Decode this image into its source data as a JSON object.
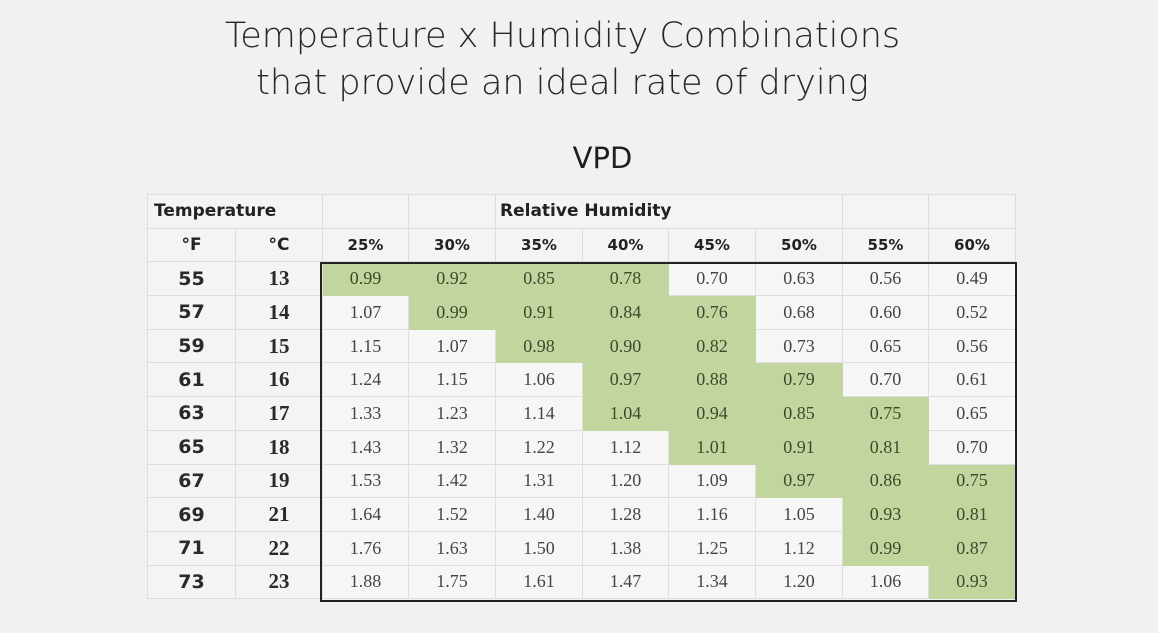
{
  "title_line1": "Temperature x Humidity Combinations",
  "title_line2": "that provide an ideal rate of drying",
  "chart_data": {
    "type": "table",
    "title": "VPD",
    "row_header": "Temperature",
    "column_group_header": "Relative Humidity",
    "unit_f": "°F",
    "unit_c": "°C",
    "columns": [
      "25%",
      "30%",
      "35%",
      "40%",
      "45%",
      "50%",
      "55%",
      "60%"
    ],
    "temps_f": [
      "55",
      "57",
      "59",
      "61",
      "63",
      "65",
      "67",
      "69",
      "71",
      "73"
    ],
    "temps_c": [
      "13",
      "14",
      "15",
      "16",
      "17",
      "18",
      "19",
      "21",
      "22",
      "23"
    ],
    "values": [
      [
        "0.99",
        "0.92",
        "0.85",
        "0.78",
        "0.70",
        "0.63",
        "0.56",
        "0.49"
      ],
      [
        "1.07",
        "0.99",
        "0.91",
        "0.84",
        "0.76",
        "0.68",
        "0.60",
        "0.52"
      ],
      [
        "1.15",
        "1.07",
        "0.98",
        "0.90",
        "0.82",
        "0.73",
        "0.65",
        "0.56"
      ],
      [
        "1.24",
        "1.15",
        "1.06",
        "0.97",
        "0.88",
        "0.79",
        "0.70",
        "0.61"
      ],
      [
        "1.33",
        "1.23",
        "1.14",
        "1.04",
        "0.94",
        "0.85",
        "0.75",
        "0.65"
      ],
      [
        "1.43",
        "1.32",
        "1.22",
        "1.12",
        "1.01",
        "0.91",
        "0.81",
        "0.70"
      ],
      [
        "1.53",
        "1.42",
        "1.31",
        "1.20",
        "1.09",
        "0.97",
        "0.86",
        "0.75"
      ],
      [
        "1.64",
        "1.52",
        "1.40",
        "1.28",
        "1.16",
        "1.05",
        "0.93",
        "0.81"
      ],
      [
        "1.76",
        "1.63",
        "1.50",
        "1.38",
        "1.25",
        "1.12",
        "0.99",
        "0.87"
      ],
      [
        "1.88",
        "1.75",
        "1.61",
        "1.47",
        "1.34",
        "1.20",
        "1.06",
        "0.93"
      ]
    ],
    "highlighted": [
      [
        1,
        1,
        1,
        1,
        0,
        0,
        0,
        0
      ],
      [
        0,
        1,
        1,
        1,
        1,
        0,
        0,
        0
      ],
      [
        0,
        0,
        1,
        1,
        1,
        0,
        0,
        0
      ],
      [
        0,
        0,
        0,
        1,
        1,
        1,
        0,
        0
      ],
      [
        0,
        0,
        0,
        1,
        1,
        1,
        1,
        0
      ],
      [
        0,
        0,
        0,
        0,
        1,
        1,
        1,
        0
      ],
      [
        0,
        0,
        0,
        0,
        0,
        1,
        1,
        1
      ],
      [
        0,
        0,
        0,
        0,
        0,
        0,
        1,
        1
      ],
      [
        0,
        0,
        0,
        0,
        0,
        0,
        1,
        1
      ],
      [
        0,
        0,
        0,
        0,
        0,
        0,
        0,
        1
      ]
    ],
    "highlight_color": "#c3d59e"
  }
}
